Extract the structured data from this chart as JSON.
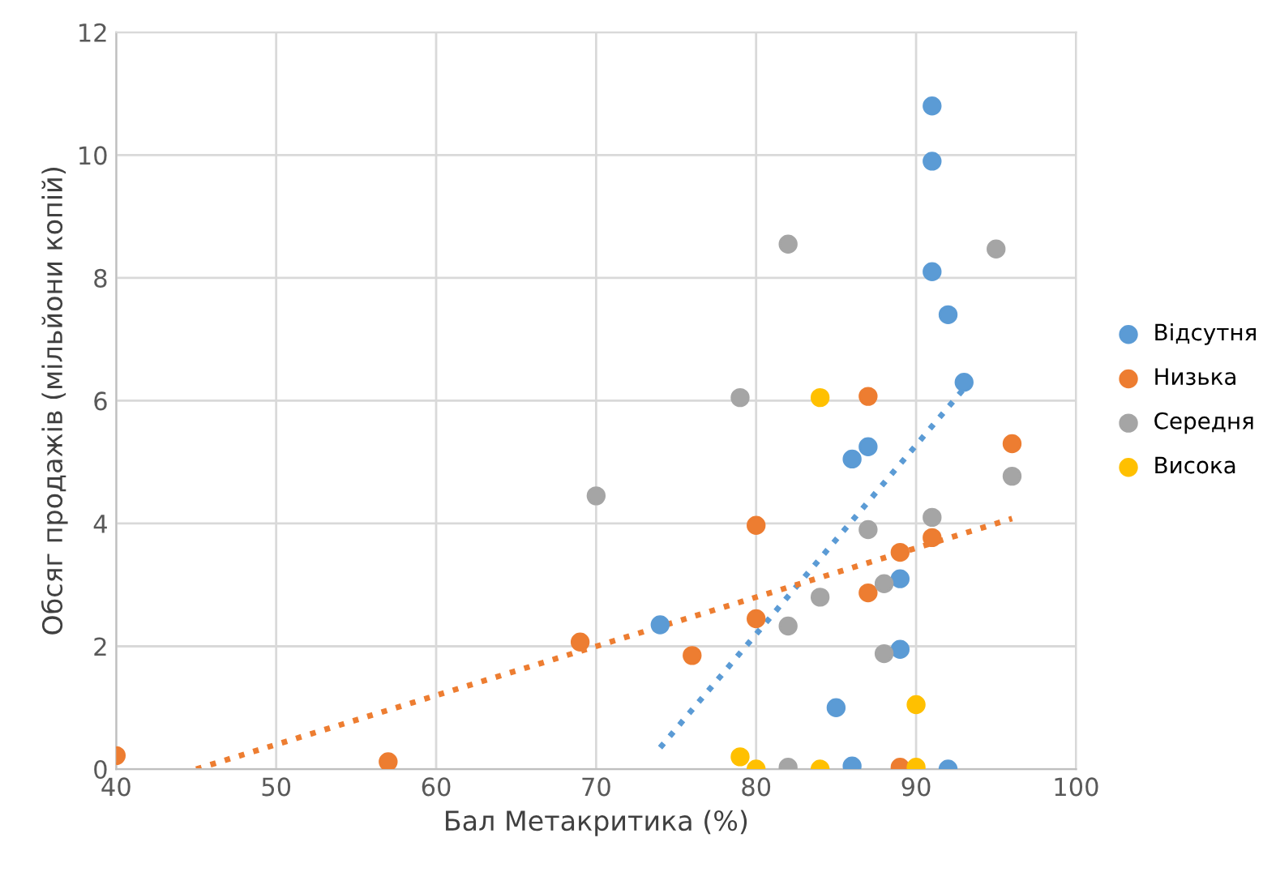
{
  "chart_data": {
    "type": "scatter",
    "xlabel": "Бал Метакритика (%)",
    "ylabel": "Обсяг продажів (мільйони копій)",
    "xlim": [
      40,
      100
    ],
    "xticks": [
      40,
      50,
      60,
      70,
      80,
      90,
      100
    ],
    "ylim": [
      0,
      12
    ],
    "yticks": [
      0,
      2,
      4,
      6,
      8,
      10,
      12
    ],
    "grid": true,
    "legend": "right",
    "marker": "circle",
    "series": [
      {
        "name": "Відсутня",
        "color": "#5b9bd5",
        "x": [
          91,
          91,
          91,
          92,
          93,
          87,
          86,
          74,
          89,
          89,
          85,
          86,
          92
        ],
        "values": [
          10.8,
          9.9,
          8.1,
          7.4,
          6.3,
          5.25,
          5.05,
          2.35,
          3.1,
          1.95,
          1.0,
          0.05,
          0.0
        ]
      },
      {
        "name": "Низька",
        "color": "#ed7d31",
        "x": [
          40,
          57,
          69,
          76,
          80,
          80,
          87,
          87,
          89,
          91,
          96,
          89
        ],
        "values": [
          0.22,
          0.12,
          2.07,
          1.85,
          3.97,
          2.45,
          6.07,
          2.87,
          3.53,
          3.77,
          5.3,
          0.03
        ]
      },
      {
        "name": "Середня",
        "color": "#a5a5a5",
        "x": [
          82,
          95,
          79,
          70,
          96,
          91,
          87,
          88,
          84,
          82,
          88,
          82
        ],
        "values": [
          8.55,
          8.47,
          6.05,
          4.45,
          4.77,
          4.1,
          3.9,
          3.02,
          2.8,
          2.33,
          1.88,
          0.03
        ]
      },
      {
        "name": "Висока",
        "color": "#ffc000",
        "x": [
          84,
          79,
          80,
          84,
          90,
          90
        ],
        "values": [
          6.05,
          0.2,
          0.0,
          0.0,
          0.03,
          1.05
        ]
      },
      {
        "type": "line",
        "color": "#5b9bd5",
        "line_style": "dotted",
        "marker": "none",
        "x": [
          74,
          93
        ],
        "values": [
          0.35,
          6.2
        ]
      },
      {
        "type": "line",
        "color": "#ed7d31",
        "line_style": "dotted",
        "marker": "none",
        "x": [
          45,
          96
        ],
        "values": [
          0.0,
          4.08
        ]
      }
    ]
  }
}
